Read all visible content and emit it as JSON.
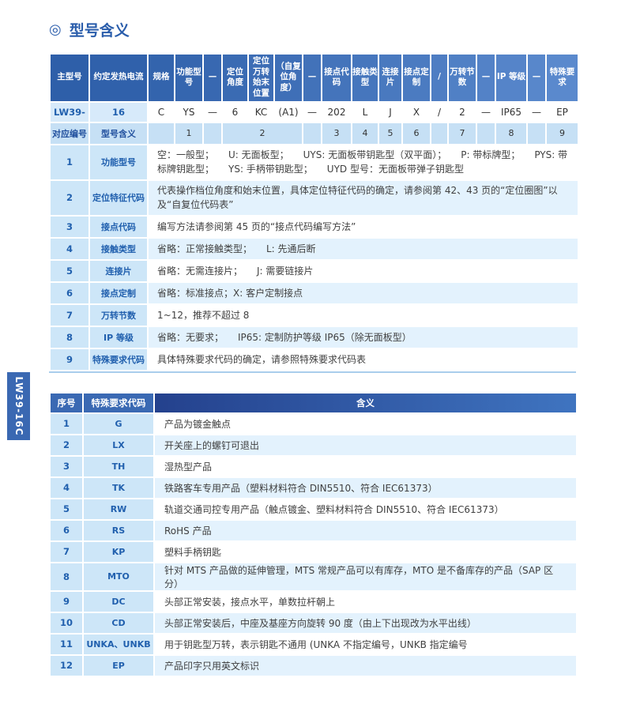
{
  "page": {
    "title": "型号含义",
    "title_icon": "◎",
    "side_tab_label": "LW39-16C"
  },
  "colors": {
    "accent_blue": "#2a5dab",
    "model_header_start": "#2e5fa9",
    "model_header_end": "#5a89cd",
    "meaning_header_start": "#24418d",
    "meaning_header_end": "#3f74c0",
    "light_cell": "#cde6f8",
    "mapping_row": "#c6e0f5",
    "highlight_cell": "#d7eafa",
    "row_alt": "#e3f2fd"
  },
  "model_table": {
    "headers": [
      "主型号",
      "约定发热电流",
      "规格",
      "功能型号",
      "—",
      "定位角度",
      "定位万转始末位置",
      "（自复位角度）",
      "—",
      "接点代码",
      "接触类型",
      "连接片",
      "接点定制",
      "/",
      "万转节数",
      "—",
      "IP 等级",
      "—",
      "特殊要求"
    ],
    "values": [
      "LW39-",
      "16",
      "C",
      "YS",
      "—",
      "6",
      "KC",
      "(A1)",
      "—",
      "202",
      "L",
      "J",
      "X",
      "/",
      "2",
      "—",
      "IP65",
      "—",
      "EP"
    ],
    "mapping_cells": [
      "对应编号",
      "型号含义",
      "",
      "1",
      "",
      "2",
      "",
      "3",
      "4",
      "5",
      "6",
      "",
      "7",
      "",
      "8",
      "",
      "9"
    ],
    "explanations": [
      {
        "no": "1",
        "label": "功能型号",
        "text": "空：一般型；　　U: 无面板型；　　UYS: 无面板带钥匙型（双平面）；　　P: 带标牌型；　　PYS: 带标牌钥匙型；　　YS: 手柄带钥匙型；　　UYD 型号：无面板带弹子钥匙型"
      },
      {
        "no": "2",
        "label": "定位特征代码",
        "text": "代表操作档位角度和始末位置，具体定位特征代码的确定，请参阅第 42、43 页的“定位圈图”以及“自复位代码表”"
      },
      {
        "no": "3",
        "label": "接点代码",
        "text": "编写方法请参阅第 45 页的“接点代码编写方法”"
      },
      {
        "no": "4",
        "label": "接触类型",
        "text": "省略：正常接触类型；　　L: 先通后断"
      },
      {
        "no": "5",
        "label": "连接片",
        "text": "省略：无需连接片；　　J: 需要链接片"
      },
      {
        "no": "6",
        "label": "接点定制",
        "text": "省略：标准接点；X: 客户定制接点"
      },
      {
        "no": "7",
        "label": "万转节数",
        "text": "1~12，推荐不超过 8"
      },
      {
        "no": "8",
        "label": "IP 等级",
        "text": "省略：无要求；　　IP65: 定制防护等级 IP65（除无面板型）"
      },
      {
        "no": "9",
        "label": "特殊要求代码",
        "text": "具体特殊要求代码的确定，请参照特殊要求代码表"
      }
    ]
  },
  "special_table": {
    "headers": [
      "序号",
      "特殊要求代码",
      "含义"
    ],
    "rows": [
      {
        "no": "1",
        "code": "G",
        "meaning": "产品为镀金触点"
      },
      {
        "no": "2",
        "code": "LX",
        "meaning": "开关座上的螺钉可退出"
      },
      {
        "no": "3",
        "code": "TH",
        "meaning": "湿热型产品"
      },
      {
        "no": "4",
        "code": "TK",
        "meaning": "铁路客车专用产品（塑料材料符合 DIN5510、符合 IEC61373）"
      },
      {
        "no": "5",
        "code": "RW",
        "meaning": "轨道交通司控专用产品（触点镀金、塑料材料符合 DIN5510、符合 IEC61373）"
      },
      {
        "no": "6",
        "code": "RS",
        "meaning": "RoHS 产品"
      },
      {
        "no": "7",
        "code": "KP",
        "meaning": "塑料手柄钥匙"
      },
      {
        "no": "8",
        "code": "MTO",
        "meaning": "针对 MTS 产品做的延伸管理，MTS 常规产品可以有库存，MTO 是不备库存的产品（SAP 区分）"
      },
      {
        "no": "9",
        "code": "DC",
        "meaning": "头部正常安装，接点水平，单数拉杆朝上"
      },
      {
        "no": "10",
        "code": "CD",
        "meaning": "头部正常安装后，中座及基座方向旋转 90 度（由上下出现改为水平出线）"
      },
      {
        "no": "11",
        "code": "UNKA、UNKB",
        "meaning": "用于钥匙型万转，表示钥匙不通用 (UNKA 不指定编号，UNKB 指定编号"
      },
      {
        "no": "12",
        "code": "EP",
        "meaning": "产品印字只用英文标识"
      }
    ]
  }
}
